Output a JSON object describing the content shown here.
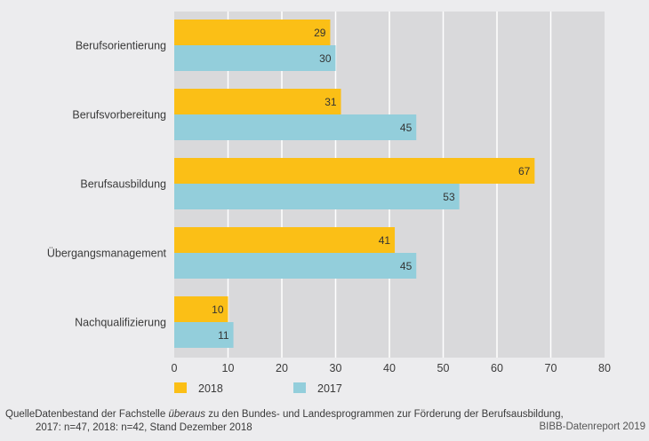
{
  "chart_data": {
    "type": "bar",
    "orientation": "horizontal",
    "title": "",
    "xlabel": "",
    "ylabel": "",
    "categories": [
      "Berufsorientierung",
      "Berufsvorbereitung",
      "Berufsausbildung",
      "Übergangsmanagement",
      "Nachqualifizierung"
    ],
    "series": [
      {
        "name": "2018",
        "color": "#FBBF16",
        "values": [
          29,
          31,
          67,
          41,
          10
        ]
      },
      {
        "name": "2017",
        "color": "#93CEDB",
        "values": [
          30,
          45,
          53,
          45,
          11
        ]
      }
    ],
    "xlim": [
      0,
      80
    ],
    "xticks": [
      0,
      10,
      20,
      30,
      40,
      50,
      60,
      70,
      80
    ],
    "grid": true,
    "legend_position": "bottom-left",
    "plot_background": "#D9D9DB",
    "page_background": "#ECECEE"
  },
  "source": {
    "prefix": "Quelle:",
    "line1_before": "Datenbestand der Fachstelle ",
    "line1_italic": "überaus",
    "line1_after": " zu den Bundes- und Landesprogrammen zur Förderung der Berufsausbildung,",
    "line2": "2017: n=47, 2018: n=42, Stand Dezember 2018"
  },
  "credit": "BIBB-Datenreport 2019"
}
